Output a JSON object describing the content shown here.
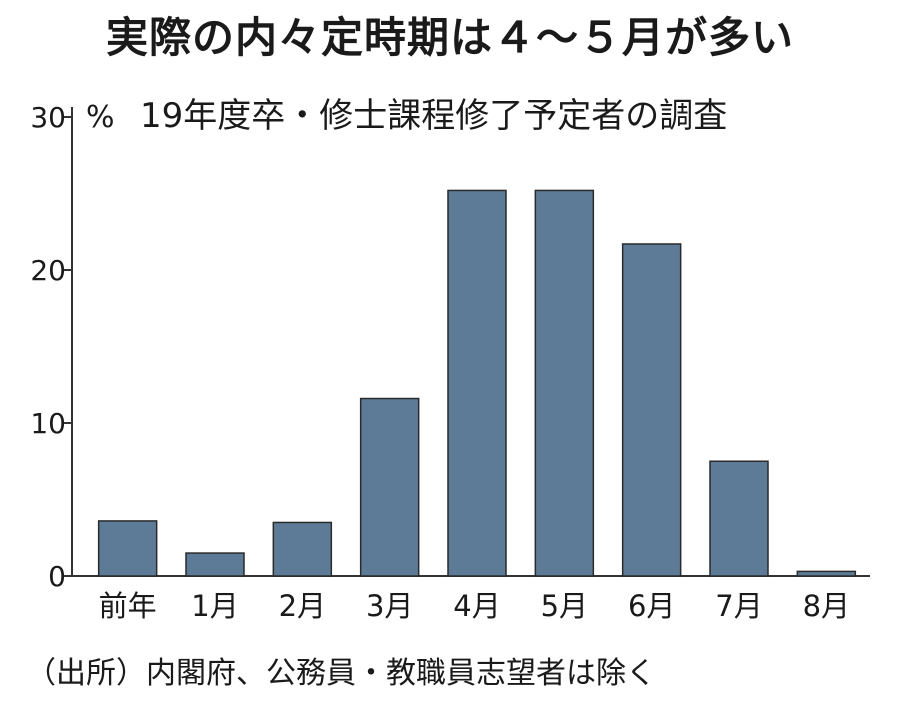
{
  "title": "実際の内々定時期は４～５月が多い",
  "subtitle": "19年度卒・修士課程修了予定者の調査",
  "source": "（出所）内閣府、公務員・教職員志望者は除く",
  "bar_color": "#5d7b96",
  "chart_data": {
    "type": "bar",
    "categories": [
      "前年",
      "1月",
      "2月",
      "3月",
      "4月",
      "5月",
      "6月",
      "7月",
      "8月"
    ],
    "values": [
      3.6,
      1.5,
      3.5,
      11.6,
      25.2,
      25.2,
      21.7,
      7.5,
      0.3
    ],
    "ylabel": "%",
    "ylim": [
      0,
      30
    ],
    "yticks": [
      0,
      10,
      20,
      30
    ],
    "grid": false
  }
}
